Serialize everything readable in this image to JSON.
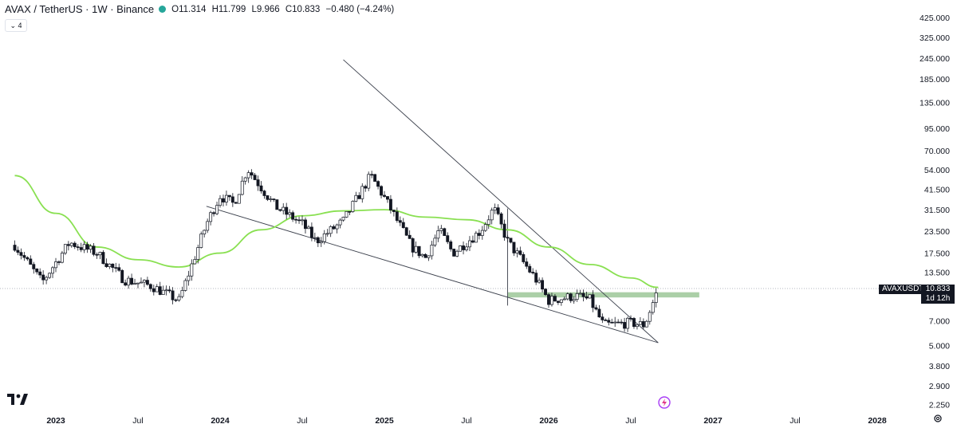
{
  "header": {
    "symbol": "AVAX / TetherUS · 1W · Binance",
    "open": "O11.314",
    "high": "H11.799",
    "low": "L9.966",
    "close": "C10.833",
    "change": "−0.480 (−4.24%)",
    "status_color": "#26a69a",
    "indicator_toggle": "⌄ 4"
  },
  "price_tags": {
    "symbol": "AVAXUSDT",
    "last_price": "10.833",
    "countdown": "1d 12h"
  },
  "icons": {
    "logo": "tradingview-logo",
    "bolt": "lightning-bolt-icon",
    "settings": "gear-icon"
  },
  "chart_data": {
    "type": "candlestick",
    "title": "AVAX / TetherUS · 1W · Binance",
    "y_scale": "log",
    "y_ticks": [
      "425.000",
      "325.000",
      "245.000",
      "185.000",
      "135.000",
      "95.000",
      "70.000",
      "54.000",
      "41.500",
      "31.500",
      "23.500",
      "17.500",
      "13.500",
      "10.833",
      "7.000",
      "5.000",
      "3.800",
      "2.900",
      "2.250"
    ],
    "x_ticks": [
      "2023",
      "Jul",
      "2024",
      "Jul",
      "2025",
      "Jul",
      "2026",
      "Jul",
      "2027",
      "Jul",
      "2028"
    ],
    "last_price": 10.833,
    "up_color": "#131722",
    "down_color": "#131722",
    "ma_color": "#89e051",
    "zone_color": "#8fbf8a",
    "x_range": [
      "2022-10",
      "2028-02"
    ],
    "candles_keypoints": [
      {
        "t": "2022-10",
        "price": 19.5
      },
      {
        "t": "2022-12",
        "price": 11.8
      },
      {
        "t": "2023-02",
        "price": 20.2
      },
      {
        "t": "2023-04",
        "price": 17.5
      },
      {
        "t": "2023-06",
        "price": 12.2
      },
      {
        "t": "2023-08",
        "price": 11.2
      },
      {
        "t": "2023-10",
        "price": 9.2
      },
      {
        "t": "2023-12",
        "price": 26.0
      },
      {
        "t": "2024-01",
        "price": 38.0
      },
      {
        "t": "2024-02",
        "price": 34.0
      },
      {
        "t": "2024-03",
        "price": 55.0
      },
      {
        "t": "2024-05",
        "price": 33.0
      },
      {
        "t": "2024-07",
        "price": 26.0
      },
      {
        "t": "2024-08",
        "price": 20.5
      },
      {
        "t": "2024-10",
        "price": 27.0
      },
      {
        "t": "2024-12",
        "price": 50.0
      },
      {
        "t": "2025-01",
        "price": 37.0
      },
      {
        "t": "2025-03",
        "price": 19.0
      },
      {
        "t": "2025-04",
        "price": 16.5
      },
      {
        "t": "2025-05",
        "price": 24.0
      },
      {
        "t": "2025-06",
        "price": 17.5
      },
      {
        "t": "2025-08",
        "price": 23.5
      },
      {
        "t": "2025-09",
        "price": 32.0
      },
      {
        "t": "2025-10",
        "price": 20.5
      },
      {
        "t": "2025-12",
        "price": 12.5
      },
      {
        "t": "2026-01",
        "price": 9.2
      },
      {
        "t": "2026-03",
        "price": 9.8
      },
      {
        "t": "2026-04",
        "price": 9.3
      },
      {
        "t": "2026-05",
        "price": 6.6
      },
      {
        "t": "2026-07",
        "price": 6.8
      },
      {
        "t": "2026-08",
        "price": 6.6
      },
      {
        "t": "2026-09",
        "price": 10.833
      }
    ],
    "moving_average": [
      {
        "t": "2022-10",
        "price": 50.0
      },
      {
        "t": "2023-01",
        "price": 30.0
      },
      {
        "t": "2023-04",
        "price": 19.0
      },
      {
        "t": "2023-07",
        "price": 16.0
      },
      {
        "t": "2023-10",
        "price": 14.5
      },
      {
        "t": "2024-01",
        "price": 17.5
      },
      {
        "t": "2024-04",
        "price": 24.0
      },
      {
        "t": "2024-07",
        "price": 29.0
      },
      {
        "t": "2024-10",
        "price": 31.0
      },
      {
        "t": "2025-01",
        "price": 31.5
      },
      {
        "t": "2025-04",
        "price": 28.5
      },
      {
        "t": "2025-07",
        "price": 27.5
      },
      {
        "t": "2025-10",
        "price": 24.0
      },
      {
        "t": "2026-01",
        "price": 19.0
      },
      {
        "t": "2026-04",
        "price": 15.0
      },
      {
        "t": "2026-07",
        "price": 12.5
      },
      {
        "t": "2026-09",
        "price": 11.0
      }
    ],
    "trendlines": [
      {
        "name": "descending-resistance",
        "from": {
          "t": "2024-10",
          "price": 240
        },
        "to": {
          "t": "2026-09",
          "price": 5.2
        }
      },
      {
        "name": "descending-support",
        "from": {
          "t": "2023-12",
          "price": 33
        },
        "to": {
          "t": "2026-09",
          "price": 5.2
        }
      }
    ],
    "horizontal_zone": {
      "from_t": "2025-10",
      "to_t": "2026-12",
      "low": 9.6,
      "high": 10.3
    }
  }
}
